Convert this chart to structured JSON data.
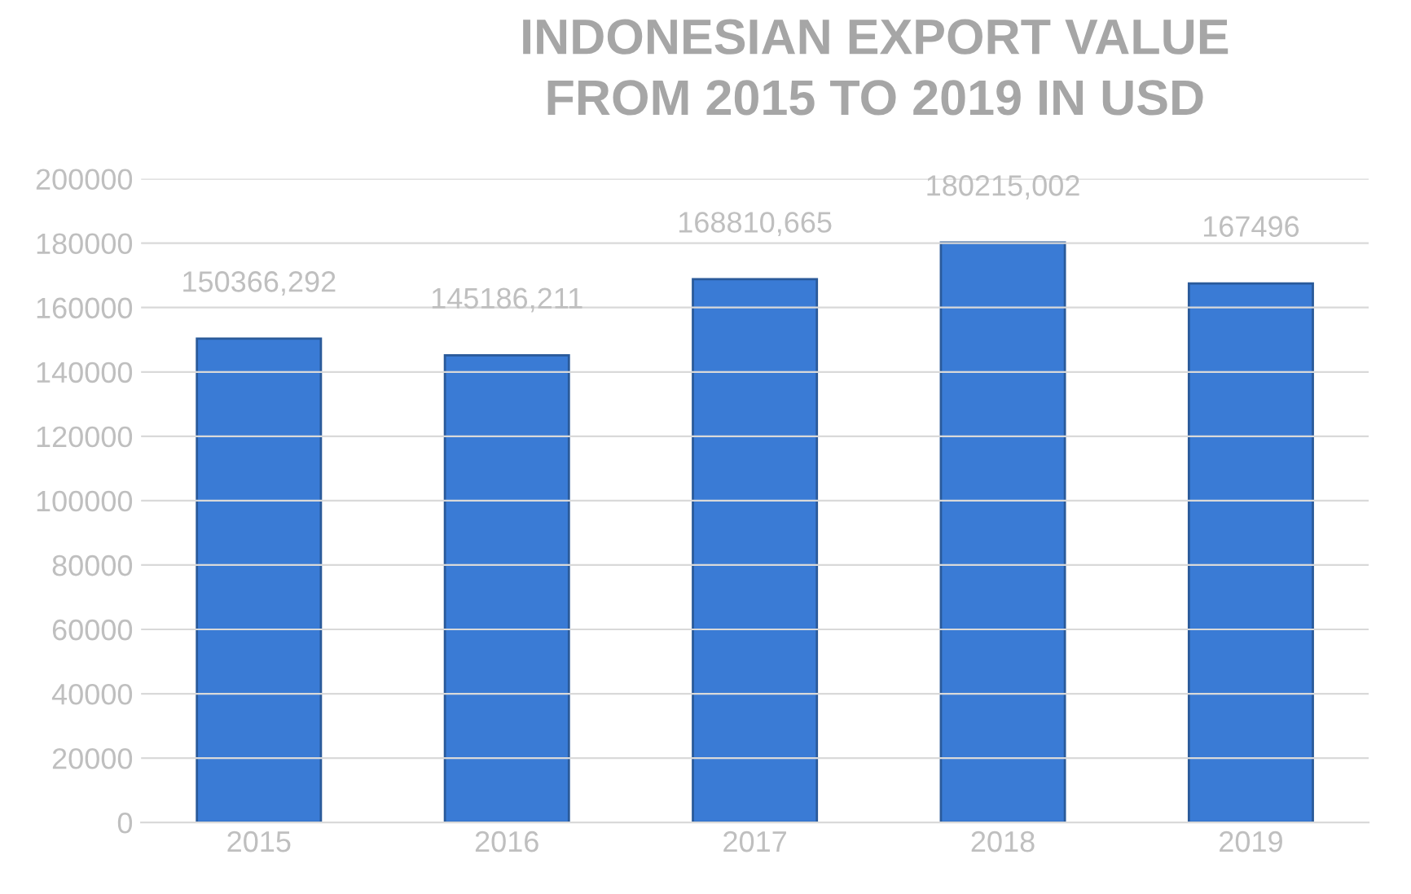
{
  "chart_data": {
    "type": "bar",
    "title": "INDONESIAN EXPORT VALUE\nFROM 2015 TO 2019 IN USD",
    "categories": [
      "2015",
      "2016",
      "2017",
      "2018",
      "2019"
    ],
    "values": [
      150366.292,
      145186.211,
      168810.665,
      180215.002,
      167496
    ],
    "value_labels": [
      "150366,292",
      "145186,211",
      "168810,665",
      "180215,002",
      "167496"
    ],
    "color": "#3a7bd5",
    "ylim": [
      0,
      200000
    ],
    "yticks": [
      0,
      20000,
      40000,
      60000,
      80000,
      100000,
      120000,
      140000,
      160000,
      180000,
      200000
    ],
    "grid": "y",
    "legend": false
  }
}
